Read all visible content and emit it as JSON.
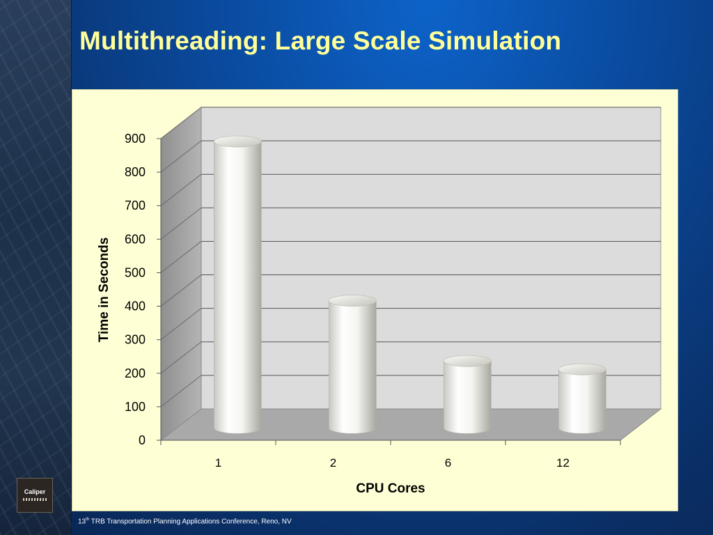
{
  "slide": {
    "title": "Multithreading: Large Scale Simulation",
    "footer_sup": "th",
    "footer_num": "13",
    "footer_text": " TRB Transportation Planning Applications Conference, Reno, NV",
    "logo_text": "Caliper"
  },
  "chart_data": {
    "type": "bar",
    "style": "3d-cylinder",
    "categories": [
      "1",
      "2",
      "6",
      "12"
    ],
    "values": [
      855,
      380,
      200,
      175
    ],
    "xlabel": "CPU Cores",
    "ylabel": "Time in Seconds",
    "ylim": [
      0,
      900
    ],
    "yticks": [
      "0",
      "100",
      "200",
      "300",
      "400",
      "500",
      "600",
      "700",
      "800",
      "900"
    ],
    "grid": true,
    "legend": "none"
  },
  "colors": {
    "title": "#ffff99",
    "panel": "#ffffd6",
    "wall": "#dcdcdc",
    "floor": "#a9a9a9",
    "bar": "#f2f2ee"
  }
}
